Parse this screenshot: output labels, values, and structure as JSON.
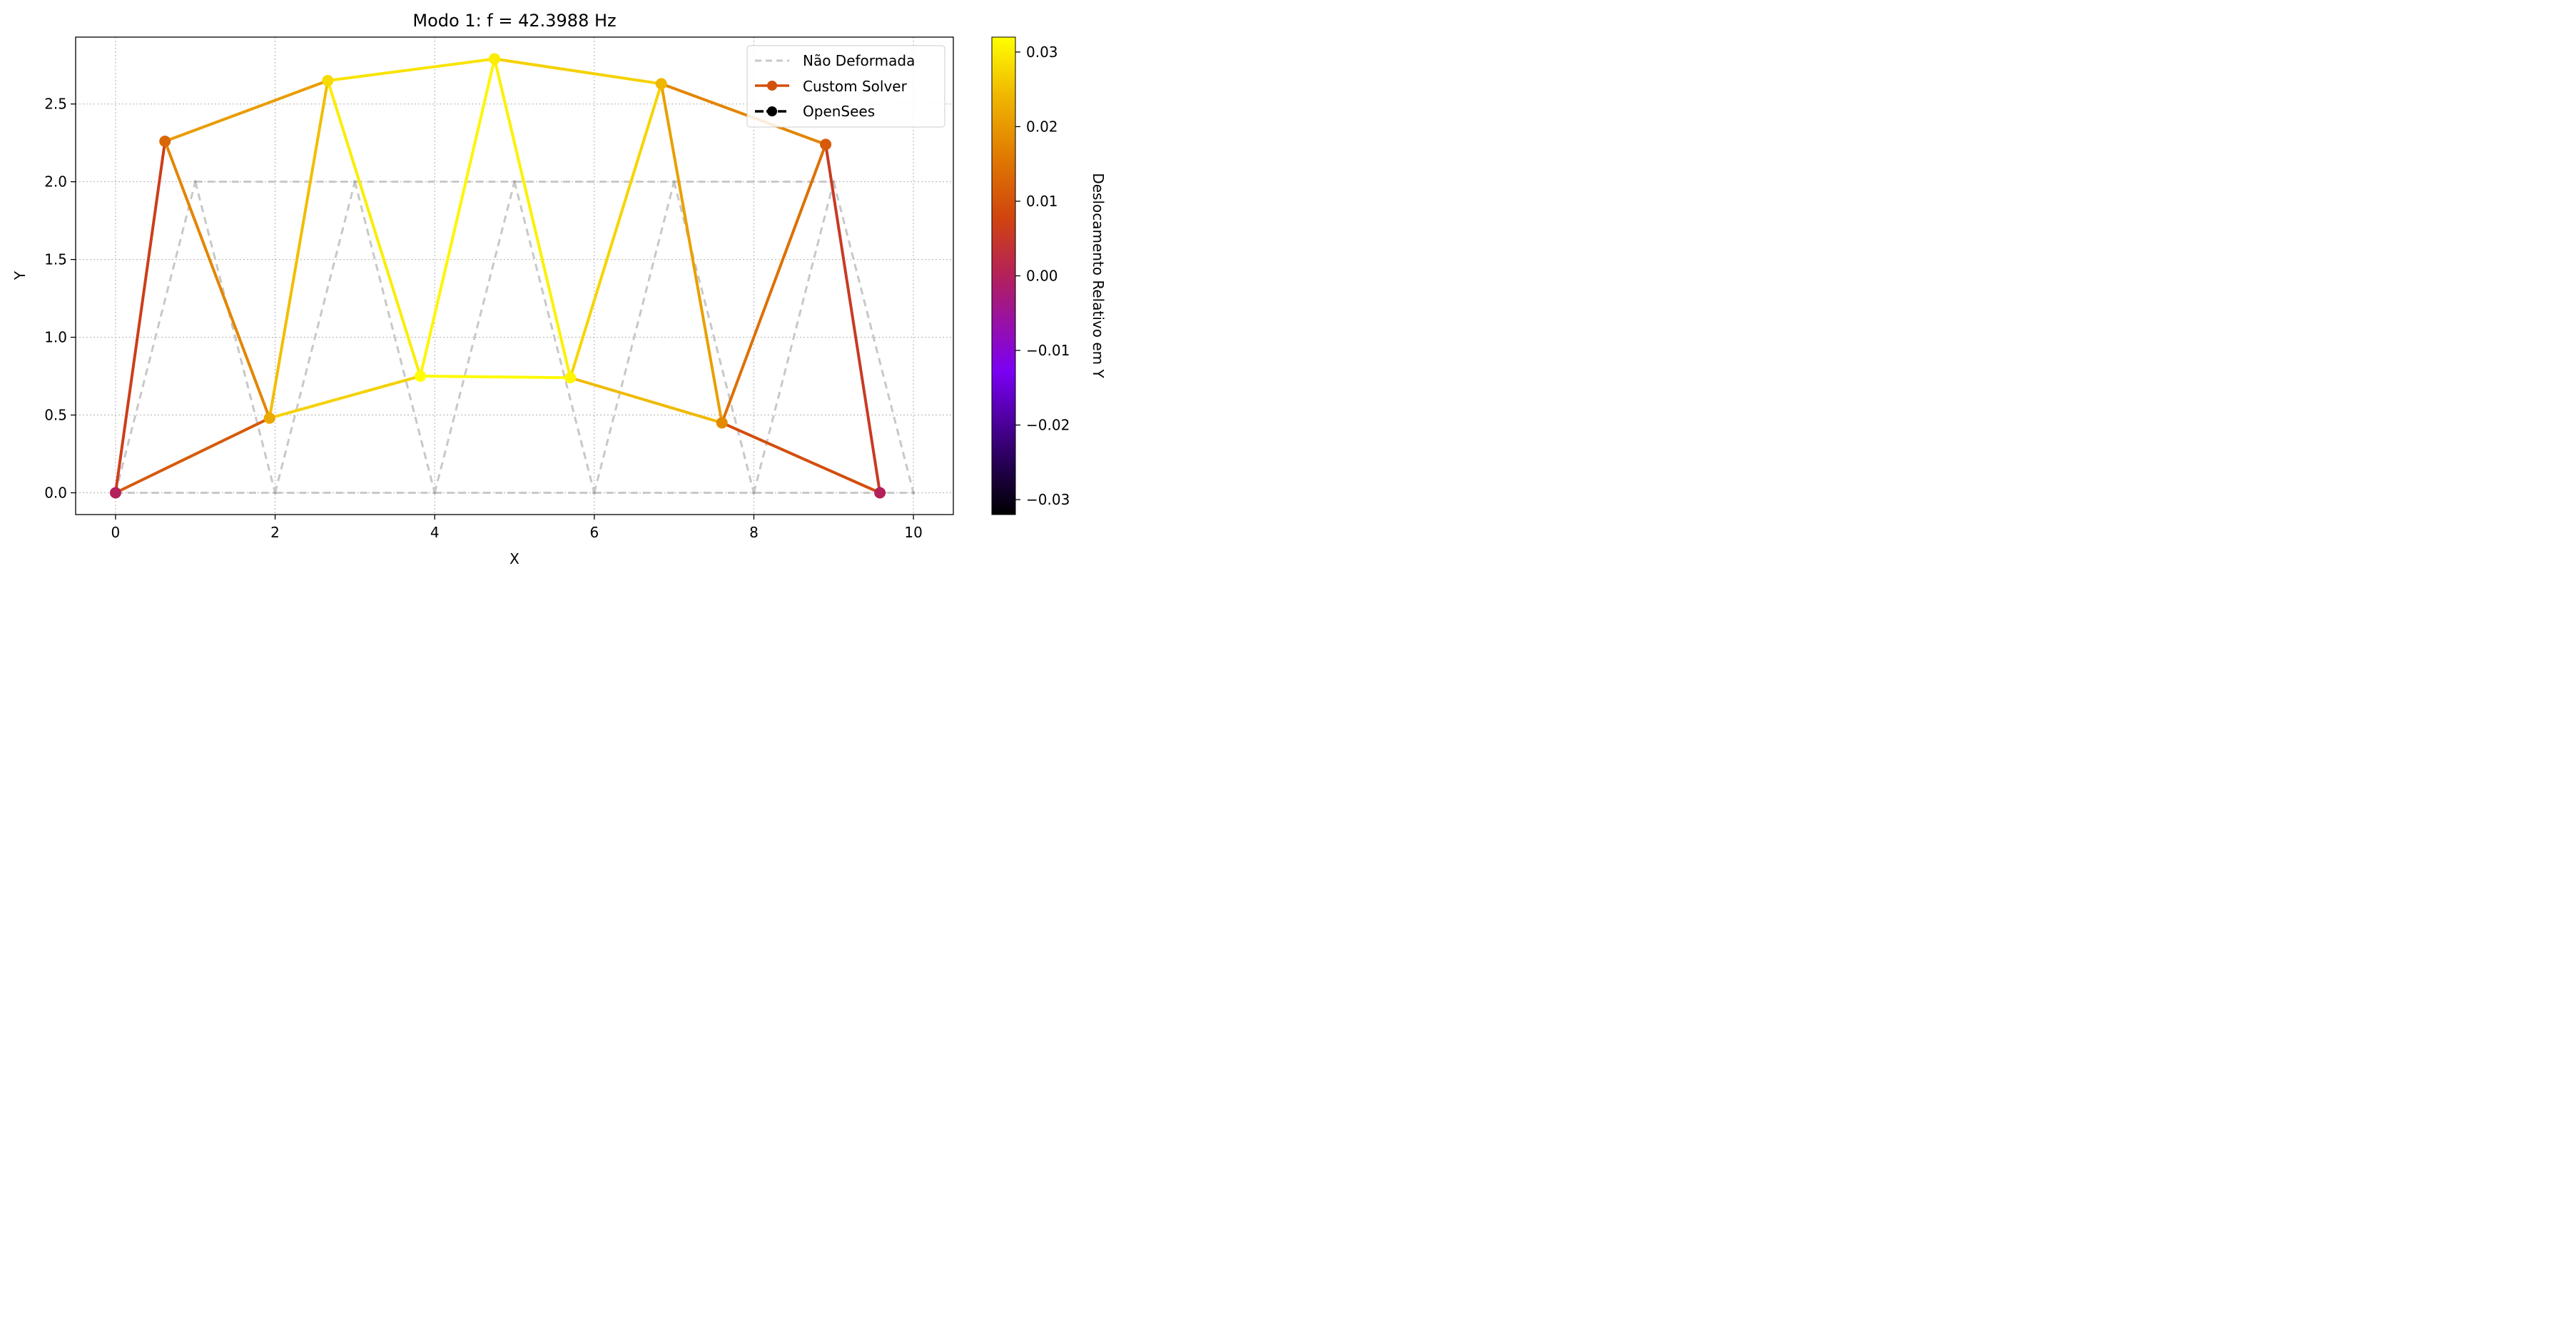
{
  "chart_data": {
    "type": "line",
    "title": "Modo 1: f = 42.3988 Hz",
    "xlabel": "X",
    "ylabel": "Y",
    "xlim": [
      -0.5,
      10.5
    ],
    "ylim": [
      -0.14,
      2.93
    ],
    "xticks": [
      0,
      2,
      4,
      6,
      8,
      10
    ],
    "xtick_labels": [
      "0",
      "2",
      "4",
      "6",
      "8",
      "10"
    ],
    "yticks": [
      0.0,
      0.5,
      1.0,
      1.5,
      2.0,
      2.5
    ],
    "ytick_labels": [
      "0.0",
      "0.5",
      "1.0",
      "1.5",
      "2.0",
      "2.5"
    ],
    "grid": true,
    "legend_position": "top-right",
    "legend": [
      "Não Deformada",
      "Custom Solver",
      "OpenSees"
    ],
    "colorbar": {
      "label": "Deslocamento Relativo em Y",
      "colormap": "gnuplot",
      "range": [
        -0.032,
        0.032
      ],
      "ticks": [
        0.03,
        0.02,
        0.01,
        0.0,
        -0.01,
        -0.02,
        -0.03
      ],
      "tick_labels": [
        "0.03",
        "0.02",
        "0.01",
        "0.00",
        "−0.01",
        "−0.02",
        "−0.03"
      ]
    },
    "undeformed": {
      "name": "Não Deformada",
      "nodes": [
        [
          0,
          0
        ],
        [
          2,
          0
        ],
        [
          4,
          0
        ],
        [
          6,
          0
        ],
        [
          8,
          0
        ],
        [
          10,
          0
        ],
        [
          1,
          2
        ],
        [
          3,
          2
        ],
        [
          5,
          2
        ],
        [
          7,
          2
        ],
        [
          9,
          2
        ]
      ]
    },
    "deformed": {
      "name": "Custom Solver",
      "nodes": [
        [
          0,
          0
        ],
        [
          1.93,
          0.48
        ],
        [
          3.82,
          0.75
        ],
        [
          5.7,
          0.74
        ],
        [
          7.6,
          0.45
        ],
        [
          9.58,
          0
        ],
        [
          0.62,
          2.26
        ],
        [
          2.66,
          2.65
        ],
        [
          4.75,
          2.79
        ],
        [
          6.84,
          2.63
        ],
        [
          8.9,
          2.24
        ]
      ],
      "node_values": [
        0.0,
        0.022,
        0.032,
        0.031,
        0.018,
        0.0,
        0.013,
        0.028,
        0.03,
        0.024,
        0.011
      ]
    },
    "opensees": {
      "name": "OpenSees"
    },
    "elements": [
      [
        0,
        1
      ],
      [
        1,
        2
      ],
      [
        2,
        3
      ],
      [
        3,
        4
      ],
      [
        4,
        5
      ],
      [
        6,
        7
      ],
      [
        7,
        8
      ],
      [
        8,
        9
      ],
      [
        9,
        10
      ],
      [
        0,
        6
      ],
      [
        6,
        1
      ],
      [
        1,
        7
      ],
      [
        7,
        2
      ],
      [
        2,
        8
      ],
      [
        8,
        3
      ],
      [
        3,
        9
      ],
      [
        9,
        4
      ],
      [
        4,
        10
      ],
      [
        10,
        5
      ]
    ],
    "colors": {
      "undeformed": "#c8c8c8",
      "custom_solver": "#d4500a",
      "opensees": "#000000",
      "grid": "#b0b0b0"
    }
  }
}
